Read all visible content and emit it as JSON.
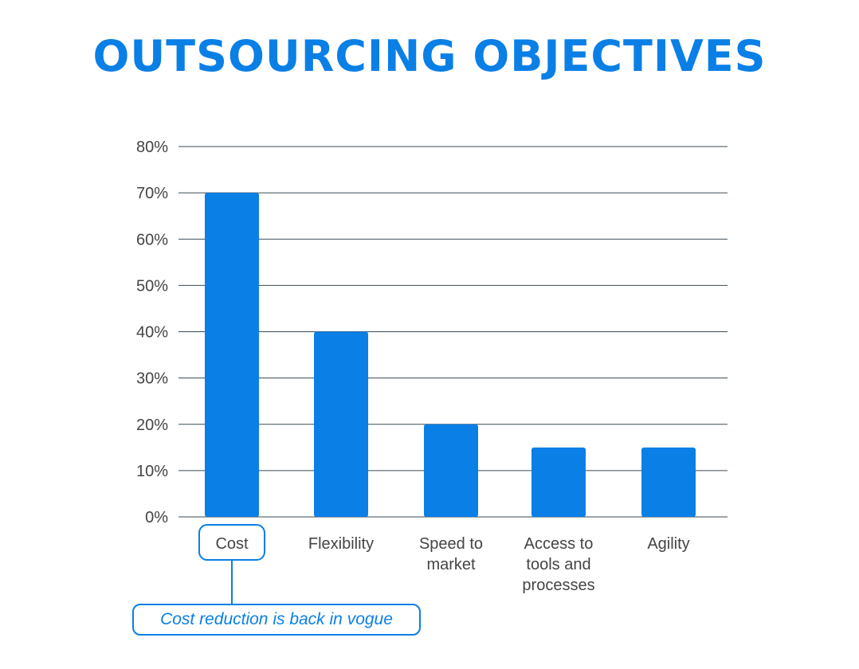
{
  "title": "OUTSOURCING OBJECTIVES",
  "colors": {
    "bar": "#0a7fe6",
    "accent": "#0a7fe6",
    "grid": "#3a4a55",
    "text": "#444444"
  },
  "chart_data": {
    "type": "bar",
    "title": "OUTSOURCING OBJECTIVES",
    "xlabel": "",
    "ylabel": "",
    "categories": [
      [
        "Cost"
      ],
      [
        "Flexibility"
      ],
      [
        "Speed to",
        "market"
      ],
      [
        "Access to",
        "tools and",
        "processes"
      ],
      [
        "Agility"
      ]
    ],
    "values": [
      70,
      40,
      20,
      15,
      15
    ],
    "y_ticks": [
      "0%",
      "10%",
      "20%",
      "30%",
      "40%",
      "50%",
      "60%",
      "70%",
      "80%"
    ],
    "ylim": [
      0,
      80
    ],
    "grid": true,
    "highlighted_category": "Cost",
    "annotation": "Cost reduction is back in vogue"
  }
}
